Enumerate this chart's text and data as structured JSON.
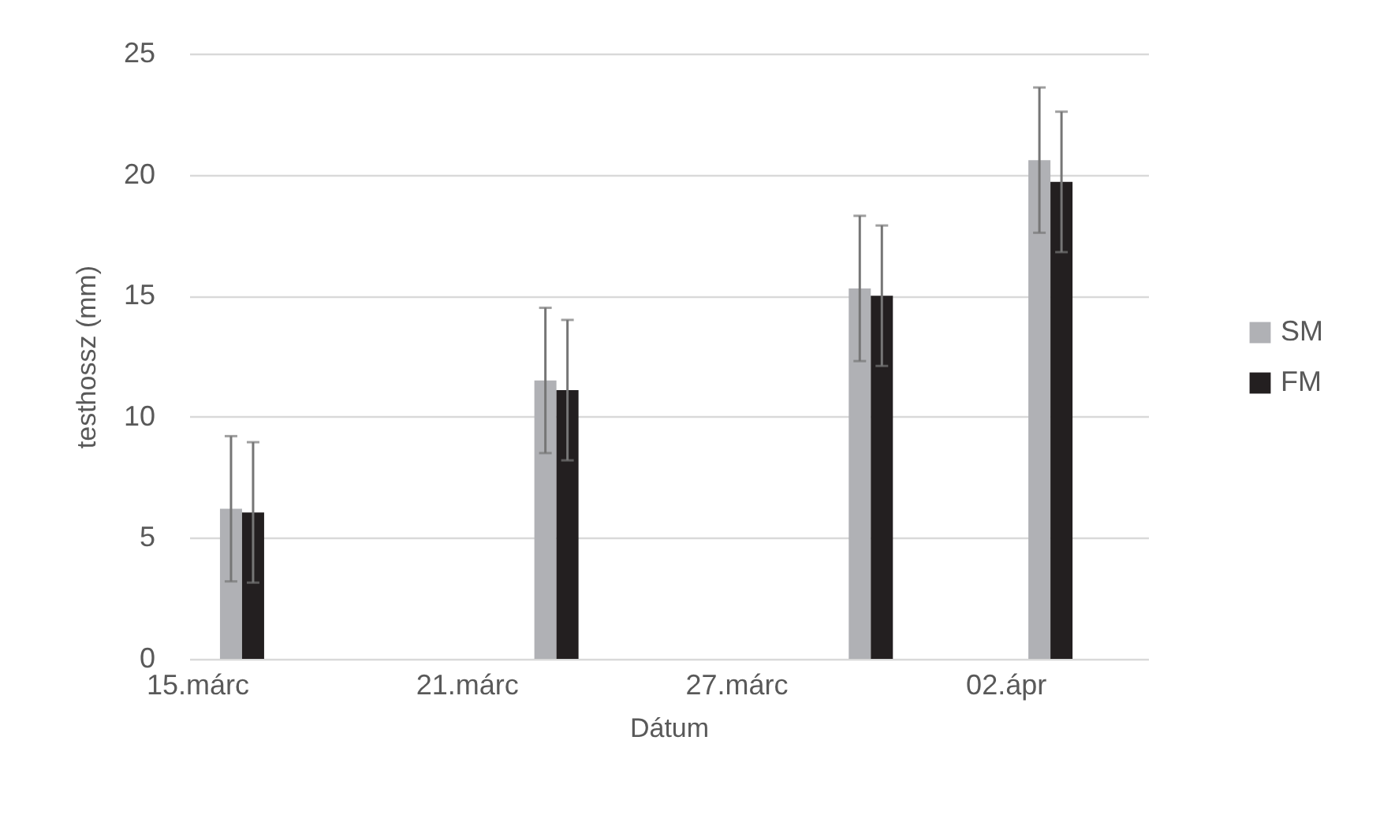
{
  "chart_data": {
    "type": "bar",
    "xlabel": "Dátum",
    "ylabel": "testhossz (mm)",
    "x": [
      "--03-16",
      "--03-23",
      "--03-30",
      "--04-03"
    ],
    "xlim": [
      "--03-15",
      "--04-05"
    ],
    "xticks": [
      {
        "value": "--03-15",
        "label": "15.márc"
      },
      {
        "value": "--03-21",
        "label": "21.márc"
      },
      {
        "value": "--03-27",
        "label": "27.márc"
      },
      {
        "value": "--04-02",
        "label": "02.ápr"
      }
    ],
    "ylim": [
      0,
      25
    ],
    "yticks": [
      0,
      5,
      10,
      15,
      20,
      25
    ],
    "grid": "y",
    "legend": "right",
    "series": [
      {
        "name": "SM",
        "color": "#b0b1b5",
        "values": [
          6.2,
          11.5,
          15.3,
          20.6
        ],
        "errors": [
          3.0,
          3.0,
          3.0,
          3.0
        ]
      },
      {
        "name": "FM",
        "color": "#231f20",
        "values": [
          6.05,
          11.1,
          15.0,
          19.7
        ],
        "errors": [
          2.9,
          2.9,
          2.9,
          2.9
        ]
      }
    ]
  }
}
